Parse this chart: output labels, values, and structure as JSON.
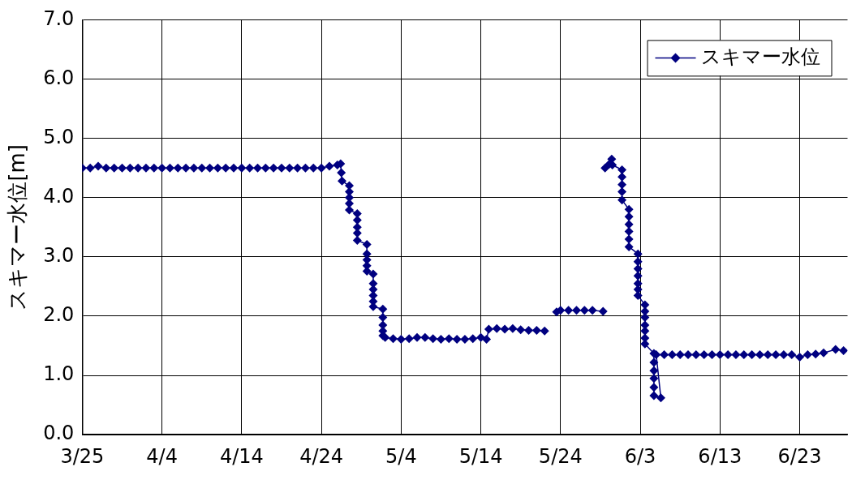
{
  "chart_data": {
    "type": "line",
    "ylabel": "スキマー水位[m]",
    "legend": "top right",
    "marker": "diamond",
    "grid": true,
    "xlim": [
      "--03-25",
      "--06-29"
    ],
    "xticks": [
      {
        "value": "--03-25",
        "label": "3/25"
      },
      {
        "value": "--04-04",
        "label": "4/4"
      },
      {
        "value": "--04-14",
        "label": "4/14"
      },
      {
        "value": "--04-24",
        "label": "4/24"
      },
      {
        "value": "--05-04",
        "label": "5/4"
      },
      {
        "value": "--05-14",
        "label": "5/14"
      },
      {
        "value": "--05-24",
        "label": "5/24"
      },
      {
        "value": "--06-03",
        "label": "6/3"
      },
      {
        "value": "--06-13",
        "label": "6/13"
      },
      {
        "value": "--06-23",
        "label": "6/23"
      }
    ],
    "ylim": [
      0,
      7
    ],
    "yticks": [
      {
        "value": 0,
        "label": "0.0"
      },
      {
        "value": 1,
        "label": "1.0"
      },
      {
        "value": 2,
        "label": "2.0"
      },
      {
        "value": 3,
        "label": "3.0"
      },
      {
        "value": 4,
        "label": "4.0"
      },
      {
        "value": 5,
        "label": "5.0"
      },
      {
        "value": 6,
        "label": "6.0"
      },
      {
        "value": 7,
        "label": "7.0"
      }
    ],
    "series": [
      {
        "name": "スキマー水位",
        "color": "#000080",
        "x": [
          "--03-25",
          "--03-26",
          "--03-27",
          "--03-28",
          "--03-29",
          "--03-30",
          "--03-31",
          "--04-01",
          "--04-02",
          "--04-03",
          "--04-04",
          "--04-05",
          "--04-06",
          "--04-07",
          "--04-08",
          "--04-09",
          "--04-10",
          "--04-11",
          "--04-12",
          "--04-13",
          "--04-14",
          "--04-15",
          "--04-16",
          "--04-17",
          "--04-18",
          "--04-19",
          "--04-20",
          "--04-21",
          "--04-22",
          "--04-23",
          "--04-24",
          "--04-25",
          "--04-26T00:00",
          "--04-26T10:00",
          "--04-26T12:00",
          "--04-26T14:00",
          "--04-27T12:00",
          "--04-27T12:00",
          "--04-27T12:00",
          "--04-27T12:00",
          "--04-27T12:00",
          "--04-28T12:00",
          "--04-28T12:00",
          "--04-28T12:00",
          "--04-28T12:00",
          "--04-28T12:00",
          "--04-29T17:00",
          "--04-29T17:00",
          "--04-29T17:00",
          "--04-29T17:00",
          "--04-29T17:00",
          "--04-30T12:00",
          "--04-30T12:00",
          "--04-30T12:00",
          "--04-30T12:00",
          "--04-30T12:00",
          "--04-30T12:00",
          "--05-01T17:00",
          "--05-01T17:00",
          "--05-01T17:00",
          "--05-01T17:00",
          "--05-01T17:00",
          "--05-02",
          "--05-03",
          "--05-04",
          "--05-05",
          "--05-06",
          "--05-07",
          "--05-08",
          "--05-09",
          "--05-10",
          "--05-11",
          "--05-12",
          "--05-13",
          "--05-14",
          "--05-14T17:00",
          "--05-15",
          "--05-16",
          "--05-17",
          "--05-18",
          "--05-19",
          "--05-20",
          "--05-21",
          "--05-22",
          "--05-23",
          "--05-23T12:00",
          "--05-24",
          "--05-25",
          "--05-26",
          "--05-27",
          "--05-28",
          "--05-29T08:00",
          "--05-29T11:00",
          "--05-29T14:00",
          "--05-30T02:00",
          "--05-30T10:00",
          "--05-30T12:00",
          "--05-31T17:00",
          "--05-31T17:00",
          "--05-31T17:00",
          "--05-31T17:00",
          "--05-31T17:00",
          "--06-01T14:00",
          "--06-01T14:00",
          "--06-01T14:00",
          "--06-01T14:00",
          "--06-01T14:00",
          "--06-01T14:00",
          "--06-02T17:00",
          "--06-02T17:00",
          "--06-02T17:00",
          "--06-02T17:00",
          "--06-02T17:00",
          "--06-02T17:00",
          "--06-02T17:00",
          "--06-03T14:00",
          "--06-03T14:00",
          "--06-03T14:00",
          "--06-03T14:00",
          "--06-03T14:00",
          "--06-03T14:00",
          "--06-03T14:00",
          "--06-04T17:00",
          "--06-04T17:00",
          "--06-04T17:00",
          "--06-04T17:00",
          "--06-04T17:00",
          "--06-04T17:00",
          "--06-05T14:00",
          "--06-05",
          "--06-06",
          "--06-07",
          "--06-08",
          "--06-09",
          "--06-10",
          "--06-11",
          "--06-12",
          "--06-13",
          "--06-14",
          "--06-15",
          "--06-16",
          "--06-17",
          "--06-18",
          "--06-19",
          "--06-20",
          "--06-21",
          "--06-22",
          "--06-23",
          "--06-24",
          "--06-25",
          "--06-26",
          "--06-27T12:00",
          "--06-28T12:00"
        ],
        "values": [
          4.5,
          4.5,
          4.53,
          4.5,
          4.5,
          4.5,
          4.5,
          4.5,
          4.5,
          4.5,
          4.5,
          4.5,
          4.5,
          4.5,
          4.5,
          4.5,
          4.5,
          4.5,
          4.5,
          4.5,
          4.5,
          4.5,
          4.5,
          4.5,
          4.5,
          4.5,
          4.5,
          4.5,
          4.5,
          4.5,
          4.5,
          4.53,
          4.55,
          4.57,
          4.42,
          4.28,
          4.2,
          4.1,
          4.0,
          3.9,
          3.79,
          3.73,
          3.62,
          3.5,
          3.4,
          3.28,
          3.21,
          3.05,
          2.95,
          2.85,
          2.76,
          2.71,
          2.55,
          2.45,
          2.35,
          2.25,
          2.16,
          2.12,
          1.98,
          1.85,
          1.75,
          1.67,
          1.64,
          1.62,
          1.61,
          1.62,
          1.64,
          1.64,
          1.62,
          1.61,
          1.62,
          1.61,
          1.61,
          1.62,
          1.64,
          1.61,
          1.78,
          1.79,
          1.78,
          1.79,
          1.77,
          1.76,
          1.76,
          1.75,
          null,
          2.07,
          2.1,
          2.1,
          2.1,
          2.1,
          2.1,
          2.08,
          null,
          4.5,
          4.56,
          4.65,
          4.55,
          4.47,
          4.35,
          4.22,
          4.1,
          3.96,
          3.8,
          3.68,
          3.55,
          3.43,
          3.3,
          3.17,
          3.05,
          2.92,
          2.8,
          2.68,
          2.55,
          2.45,
          2.35,
          2.19,
          2.08,
          1.98,
          1.85,
          1.75,
          1.63,
          1.53,
          1.37,
          1.22,
          1.08,
          0.95,
          0.8,
          0.66,
          0.62,
          1.35,
          1.35,
          1.35,
          1.35,
          1.35,
          1.35,
          1.35,
          1.35,
          1.35,
          1.35,
          1.35,
          1.35,
          1.35,
          1.35,
          1.35,
          1.35,
          1.35,
          1.35,
          1.31,
          1.35,
          1.36,
          1.38,
          1.44,
          1.42
        ]
      }
    ]
  }
}
